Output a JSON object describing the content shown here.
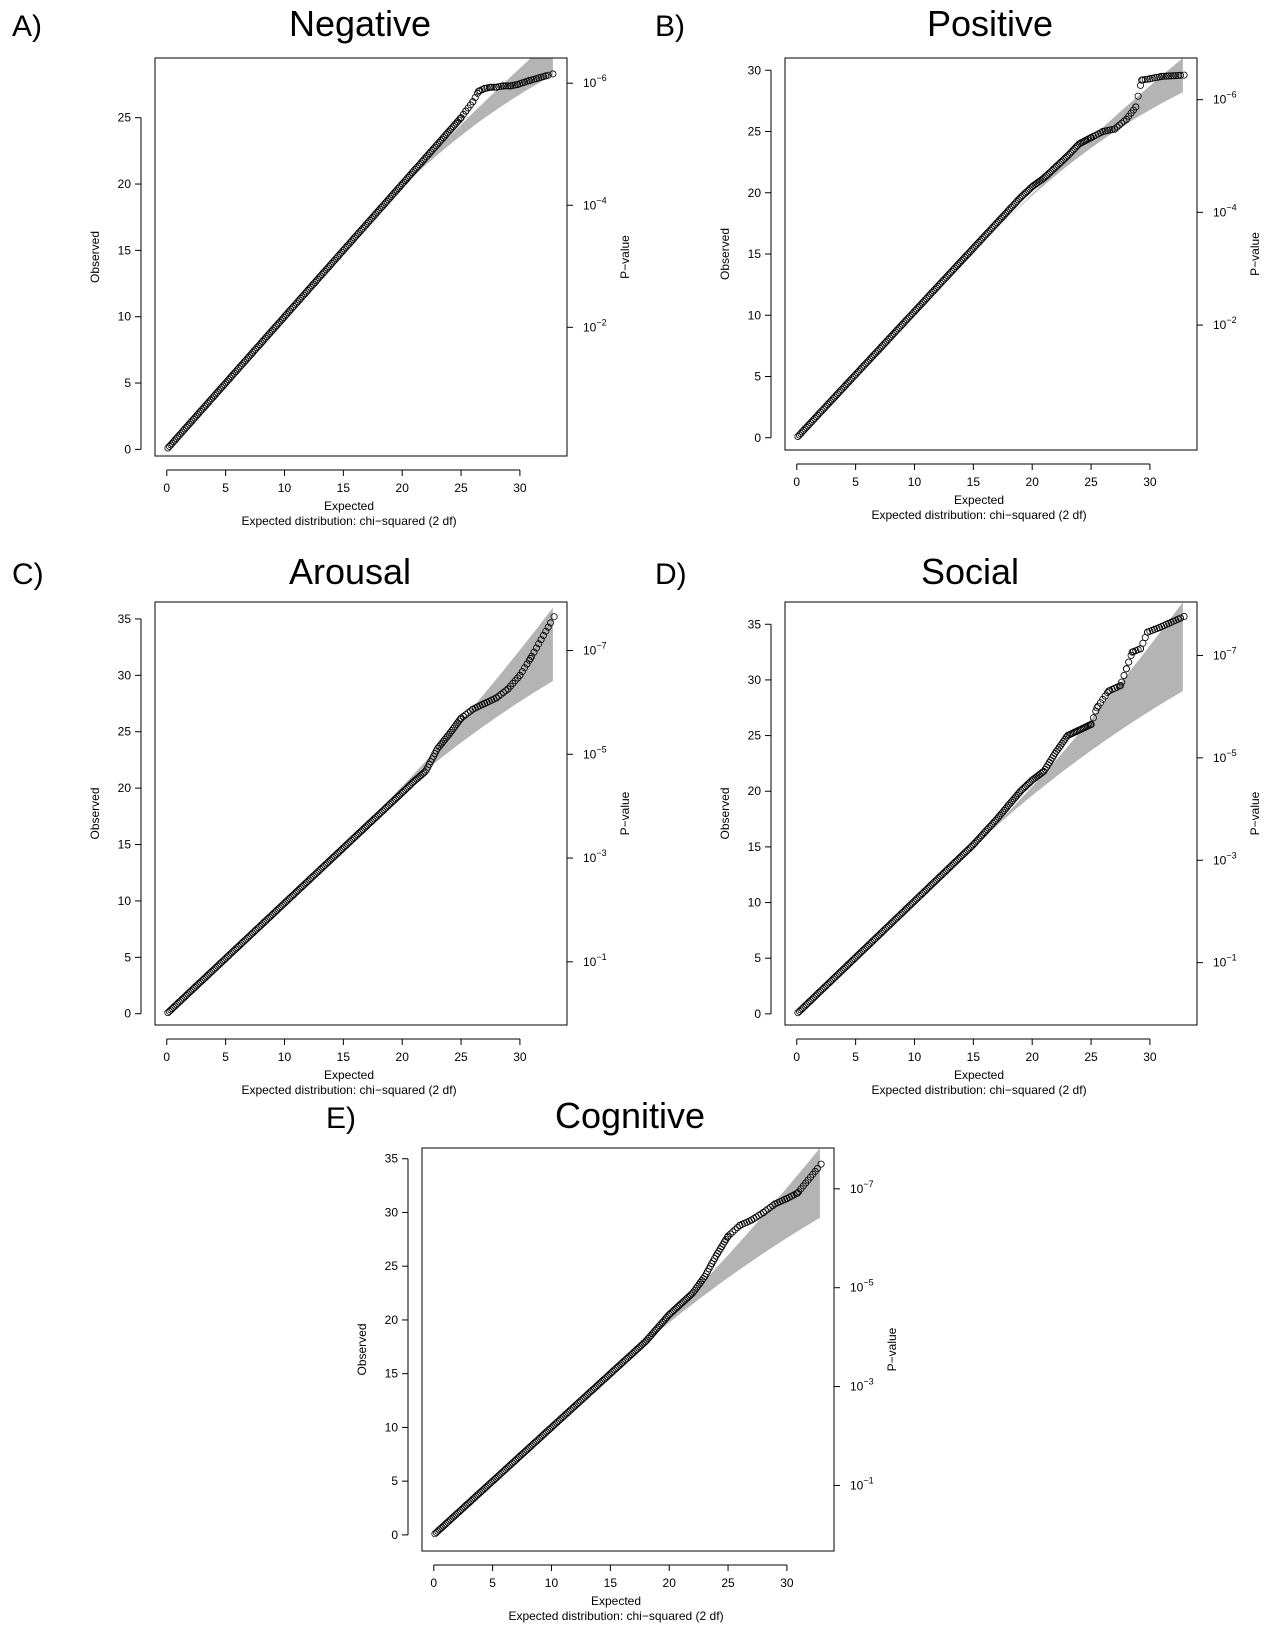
{
  "chart_data": [
    {
      "type": "scatter",
      "panel_letter": "A)",
      "title": "Negative",
      "xlabel": "Expected",
      "xlabel2": "Expected distribution: chi−squared (2 df)",
      "ylabel": "Observed",
      "ylabel_right": "P−value",
      "xlim": [
        -1,
        34
      ],
      "ylim": [
        -0.5,
        29.5
      ],
      "xticks": [
        "0",
        "5",
        "10",
        "15",
        "20",
        "25",
        "30"
      ],
      "yticks": [
        "0",
        "5",
        "10",
        "15",
        "20",
        "25"
      ],
      "right_ticks": [
        {
          "base": "10",
          "exp": "−2",
          "obs": 9.2
        },
        {
          "base": "10",
          "exp": "−4",
          "obs": 18.4
        },
        {
          "base": "10",
          "exp": "−6",
          "obs": 27.6
        }
      ],
      "band_start": 17,
      "band_end": 32.8,
      "band_upper_end": 31,
      "band_lower_end": 28.2,
      "series": [
        {
          "values": [
            [
              0,
              0
            ],
            [
              25,
              25
            ],
            [
              25.4,
              25.5
            ],
            [
              26,
              26.2
            ],
            [
              26.5,
              27
            ],
            [
              27,
              27.2
            ],
            [
              27.5,
              27.3
            ],
            [
              28,
              27.3
            ],
            [
              28.6,
              27.4
            ],
            [
              29.2,
              27.4
            ],
            [
              29.8,
              27.5
            ],
            [
              30.8,
              27.8
            ],
            [
              32.8,
              28.3
            ]
          ]
        }
      ]
    },
    {
      "type": "scatter",
      "panel_letter": "B)",
      "title": "Positive",
      "xlabel": "Expected",
      "xlabel2": "Expected distribution: chi−squared (2 df)",
      "ylabel": "Observed",
      "ylabel_right": "P−value",
      "xlim": [
        -1,
        34
      ],
      "ylim": [
        -1,
        31
      ],
      "xticks": [
        "0",
        "5",
        "10",
        "15",
        "20",
        "25",
        "30"
      ],
      "yticks": [
        "0",
        "5",
        "10",
        "15",
        "20",
        "25",
        "30"
      ],
      "right_ticks": [
        {
          "base": "10",
          "exp": "−2",
          "obs": 9.2
        },
        {
          "base": "10",
          "exp": "−4",
          "obs": 18.4
        },
        {
          "base": "10",
          "exp": "−6",
          "obs": 27.6
        }
      ],
      "band_start": 17,
      "band_end": 32.8,
      "band_upper_end": 31,
      "band_lower_end": 28.2,
      "series": [
        {
          "values": [
            [
              0,
              0
            ],
            [
              19,
              19.6
            ],
            [
              20,
              20.5
            ],
            [
              21,
              21.2
            ],
            [
              22,
              22.1
            ],
            [
              23,
              23
            ],
            [
              24,
              24
            ],
            [
              25,
              24.5
            ],
            [
              26,
              25
            ],
            [
              27,
              25.2
            ],
            [
              28,
              26
            ],
            [
              28.8,
              27
            ],
            [
              29.3,
              29.2
            ],
            [
              30,
              29.3
            ],
            [
              31,
              29.5
            ],
            [
              32.9,
              29.6
            ]
          ]
        }
      ]
    },
    {
      "type": "scatter",
      "panel_letter": "C)",
      "title": "Arousal",
      "xlabel": "Expected",
      "xlabel2": "Expected distribution: chi−squared (2 df)",
      "ylabel": "Observed",
      "ylabel_right": "P−value",
      "xlim": [
        -1,
        34
      ],
      "ylim": [
        -1,
        36.5
      ],
      "xticks": [
        "0",
        "5",
        "10",
        "15",
        "20",
        "25",
        "30"
      ],
      "yticks": [
        "0",
        "5",
        "10",
        "15",
        "20",
        "25",
        "30",
        "35"
      ],
      "right_ticks": [
        {
          "base": "10",
          "exp": "−1",
          "obs": 4.6
        },
        {
          "base": "10",
          "exp": "−3",
          "obs": 13.8
        },
        {
          "base": "10",
          "exp": "−5",
          "obs": 23.0
        },
        {
          "base": "10",
          "exp": "−7",
          "obs": 32.2
        }
      ],
      "band_start": 17,
      "band_end": 32.8,
      "band_upper_end": 36,
      "band_lower_end": 29.5,
      "series": [
        {
          "values": [
            [
              0,
              0
            ],
            [
              20,
              19.6
            ],
            [
              21,
              20.6
            ],
            [
              22,
              21.5
            ],
            [
              23,
              23.5
            ],
            [
              24,
              24.8
            ],
            [
              25,
              26.2
            ],
            [
              26,
              27
            ],
            [
              27,
              27.5
            ],
            [
              28,
              28
            ],
            [
              29,
              28.8
            ],
            [
              30,
              30
            ],
            [
              30.9,
              31.5
            ],
            [
              32.9,
              35.2
            ]
          ]
        }
      ]
    },
    {
      "type": "scatter",
      "panel_letter": "D)",
      "title": "Social",
      "xlabel": "Expected",
      "xlabel2": "Expected distribution: chi−squared (2 df)",
      "ylabel": "Observed",
      "ylabel_right": "P−value",
      "xlim": [
        -1,
        34
      ],
      "ylim": [
        -1,
        37
      ],
      "xticks": [
        "0",
        "5",
        "10",
        "15",
        "20",
        "25",
        "30"
      ],
      "yticks": [
        "0",
        "5",
        "10",
        "15",
        "20",
        "25",
        "30",
        "35"
      ],
      "right_ticks": [
        {
          "base": "10",
          "exp": "−1",
          "obs": 4.6
        },
        {
          "base": "10",
          "exp": "−3",
          "obs": 13.8
        },
        {
          "base": "10",
          "exp": "−5",
          "obs": 23.0
        },
        {
          "base": "10",
          "exp": "−7",
          "obs": 32.2
        }
      ],
      "band_start": 15,
      "band_end": 32.8,
      "band_upper_end": 37,
      "band_lower_end": 29.0,
      "series": [
        {
          "values": [
            [
              0,
              0
            ],
            [
              15,
              15.2
            ],
            [
              17,
              17.5
            ],
            [
              19,
              20
            ],
            [
              20,
              21
            ],
            [
              21,
              21.8
            ],
            [
              22,
              23.5
            ],
            [
              23,
              25
            ],
            [
              24,
              25.5
            ],
            [
              25,
              26
            ],
            [
              25.5,
              27.5
            ],
            [
              26.5,
              29
            ],
            [
              27.5,
              29.5
            ],
            [
              28,
              31
            ],
            [
              28.5,
              32.5
            ],
            [
              29.2,
              32.8
            ],
            [
              29.8,
              34.3
            ],
            [
              30.8,
              34.7
            ],
            [
              32.9,
              35.7
            ]
          ]
        }
      ]
    },
    {
      "type": "scatter",
      "panel_letter": "E)",
      "title": "Cognitive",
      "xlabel": "Expected",
      "xlabel2": "Expected distribution: chi−squared (2 df)",
      "ylabel": "Observed",
      "ylabel_right": "P−value",
      "xlim": [
        -1,
        34
      ],
      "ylim": [
        -1.5,
        36
      ],
      "xticks": [
        "0",
        "5",
        "10",
        "15",
        "20",
        "25",
        "30"
      ],
      "yticks": [
        "0",
        "5",
        "10",
        "15",
        "20",
        "25",
        "30",
        "35"
      ],
      "right_ticks": [
        {
          "base": "10",
          "exp": "−1",
          "obs": 4.6
        },
        {
          "base": "10",
          "exp": "−3",
          "obs": 13.8
        },
        {
          "base": "10",
          "exp": "−5",
          "obs": 23.0
        },
        {
          "base": "10",
          "exp": "−7",
          "obs": 32.2
        }
      ],
      "band_start": 16,
      "band_end": 32.8,
      "band_upper_end": 36,
      "band_lower_end": 29.5,
      "series": [
        {
          "values": [
            [
              0,
              0
            ],
            [
              18,
              18
            ],
            [
              20,
              20.5
            ],
            [
              21,
              21.5
            ],
            [
              22,
              22.5
            ],
            [
              23,
              24
            ],
            [
              24,
              26
            ],
            [
              25,
              27.8
            ],
            [
              26,
              28.8
            ],
            [
              27,
              29.3
            ],
            [
              28,
              30
            ],
            [
              29,
              30.8
            ],
            [
              30,
              31.3
            ],
            [
              30.9,
              31.8
            ],
            [
              32.9,
              34.5
            ]
          ]
        }
      ]
    }
  ]
}
